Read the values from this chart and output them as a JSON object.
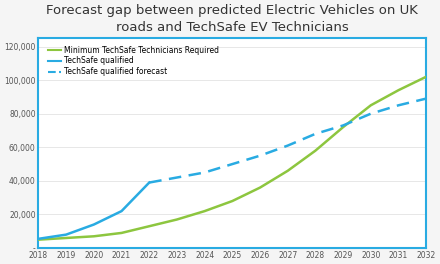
{
  "title": "Forecast gap between predicted Electric Vehicles on UK\nroads and TechSafe EV Technicians",
  "title_fontsize": 9.5,
  "years": [
    2018,
    2019,
    2020,
    2021,
    2022,
    2023,
    2024,
    2025,
    2026,
    2027,
    2028,
    2029,
    2030,
    2031,
    2032
  ],
  "min_technicians": [
    5000,
    6000,
    7000,
    9000,
    13000,
    17000,
    22000,
    28000,
    36000,
    46000,
    58000,
    72000,
    85000,
    94000,
    102000
  ],
  "techsafe_qualified": [
    5500,
    8000,
    14000,
    22000,
    39000,
    null,
    null,
    null,
    null,
    null,
    null,
    null,
    null,
    null,
    null
  ],
  "techsafe_forecast": [
    null,
    null,
    null,
    null,
    39000,
    42000,
    45000,
    50000,
    55000,
    61000,
    68000,
    73000,
    80000,
    85000,
    89000
  ],
  "color_green": "#8DC63F",
  "color_teal": "#29ABE2",
  "ylim": [
    0,
    125000
  ],
  "yticks": [
    0,
    20000,
    40000,
    60000,
    80000,
    100000,
    120000
  ],
  "ytick_labels": [
    "-",
    "20,000",
    "40,000",
    "60,000",
    "80,000",
    "100,000",
    "120,000"
  ],
  "legend_labels": [
    "Minimum TechSafe Technicians Required",
    "TechSafe qualified",
    "TechSafe qualified forecast"
  ],
  "spine_color": "#29ABE2",
  "background_color": "#f5f5f5",
  "plot_bg": "#ffffff"
}
